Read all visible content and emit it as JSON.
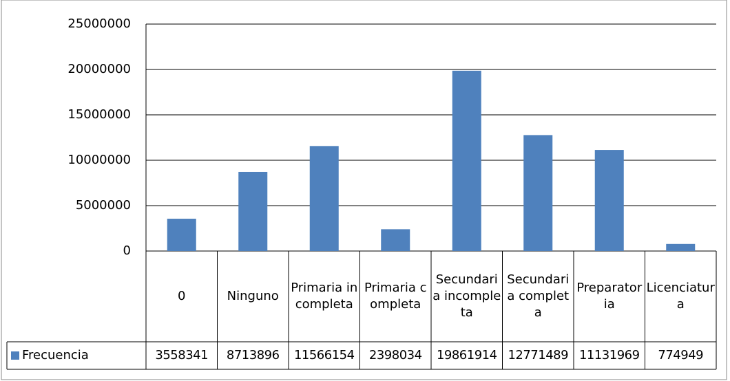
{
  "chart_data": {
    "type": "bar",
    "categories": [
      "0",
      "Ninguno",
      "Primaria incompleta",
      "Primaria completa",
      "Secundaria incompleta",
      "Secundaria completa",
      "Preparatoria",
      "Licenciatura"
    ],
    "series": [
      {
        "name": "Frecuencia",
        "color": "#4f81bd",
        "values": [
          3558341,
          8713896,
          11566154,
          2398034,
          19861914,
          12771489,
          11131969,
          774949
        ]
      }
    ],
    "ylim": [
      0,
      25000000
    ],
    "yticks": [
      0,
      5000000,
      10000000,
      15000000,
      20000000,
      25000000
    ],
    "grid": true,
    "data_table": true
  }
}
